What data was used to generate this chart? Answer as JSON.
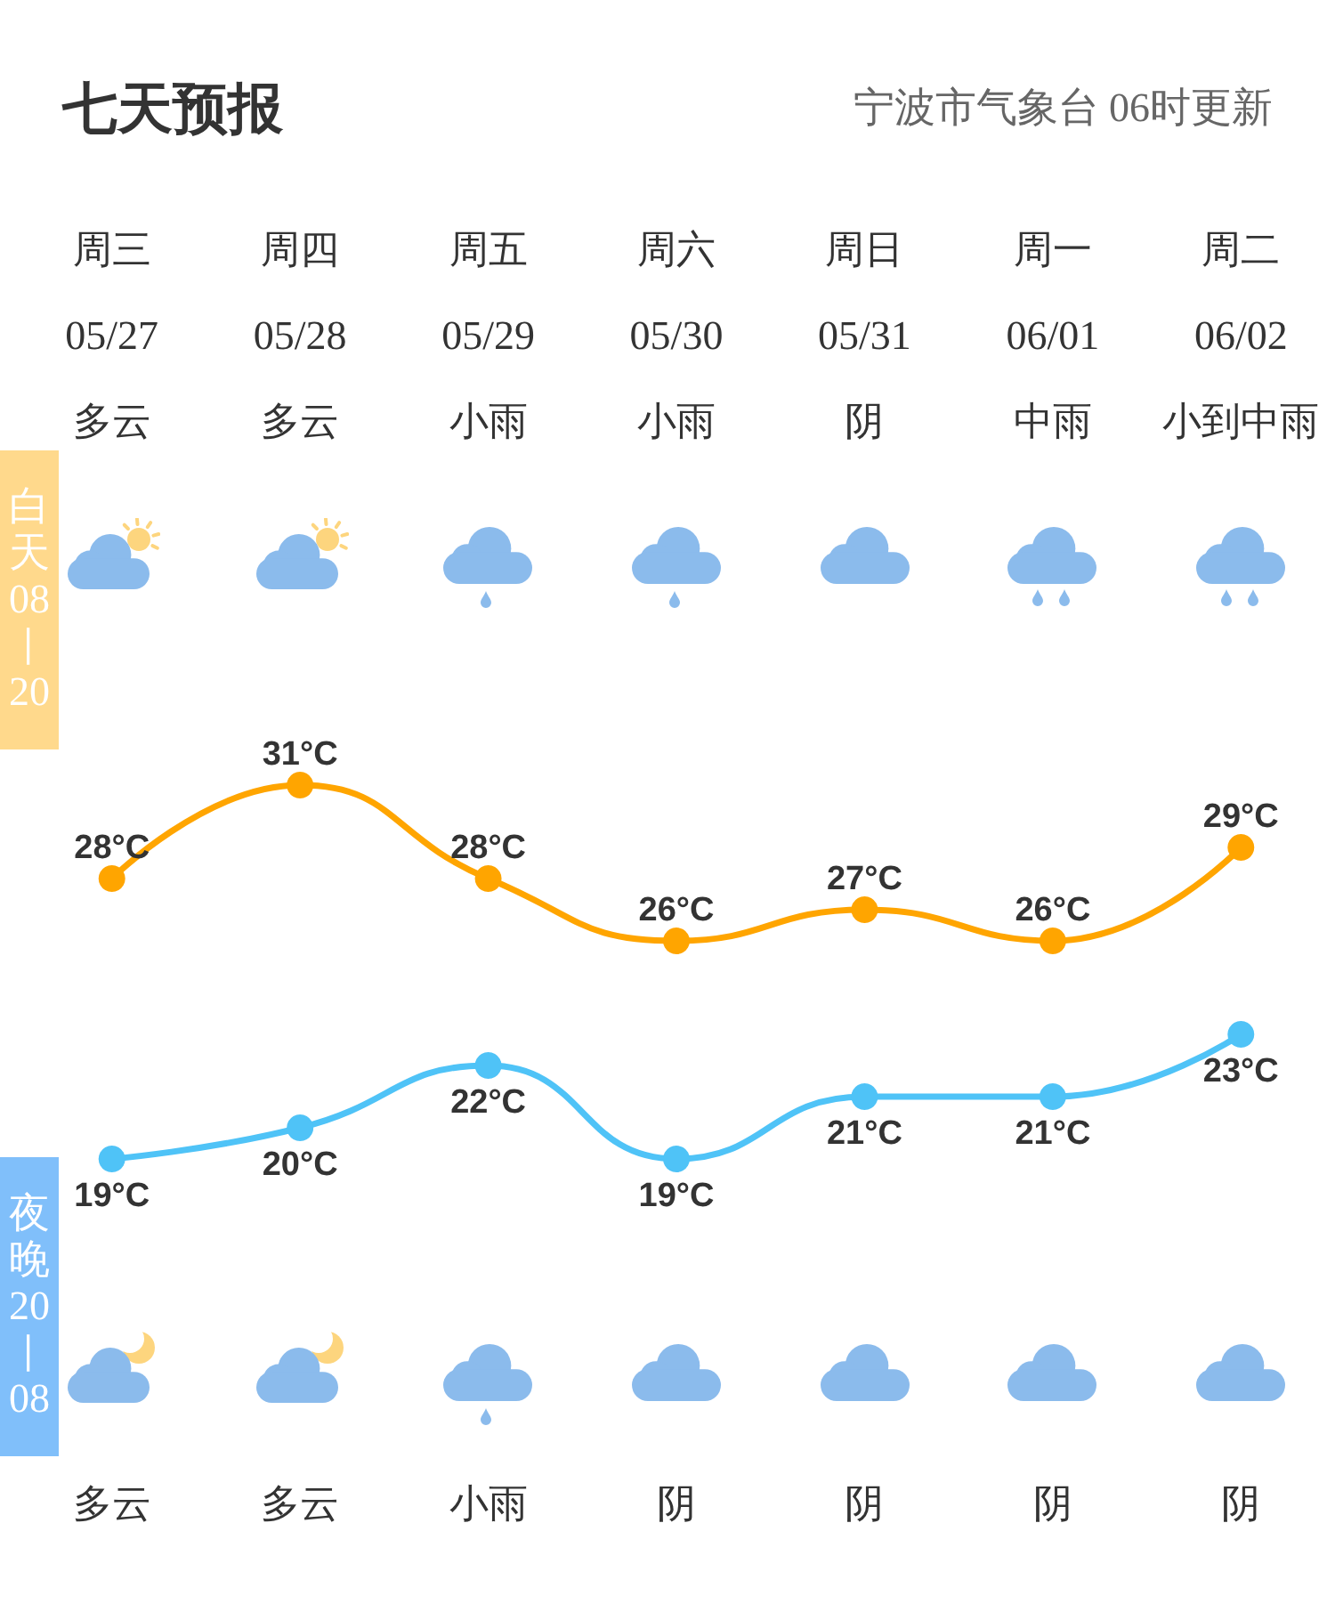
{
  "chart_data": {
    "type": "line",
    "title": "七天预报",
    "subtitle": "宁波市气象台 06时更新",
    "categories": [
      "周三",
      "周四",
      "周五",
      "周六",
      "周日",
      "周一",
      "周二"
    ],
    "series": [
      {
        "color": "#ffa500",
        "values": [
          28,
          31,
          28,
          26,
          27,
          26,
          29
        ],
        "value_labels": [
          "28°C",
          "31°C",
          "28°C",
          "26°C",
          "27°C",
          "26°C",
          "29°C"
        ]
      },
      {
        "color": "#4fc3f7",
        "values": [
          19,
          20,
          22,
          19,
          21,
          21,
          23
        ],
        "value_labels": [
          "19°C",
          "20°C",
          "22°C",
          "19°C",
          "21°C",
          "21°C",
          "23°C"
        ]
      }
    ],
    "marker": "circle",
    "line_style": "solid",
    "tick_labels": "x",
    "annotations": [
      "05/27",
      "05/28",
      "05/29",
      "05/30",
      "05/31",
      "06/01",
      "06/02",
      "多云",
      "多云",
      "小雨",
      "小雨",
      "阴",
      "中雨",
      "小到中雨",
      "多云",
      "多云",
      "小雨",
      "阴",
      "阴",
      "阴",
      "阴",
      "白天08—20",
      "夜晚20—08"
    ]
  }
}
